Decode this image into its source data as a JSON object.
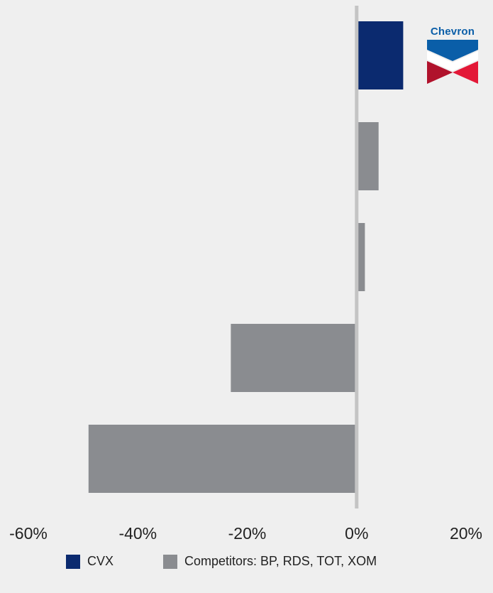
{
  "chart_data": {
    "type": "bar",
    "orientation": "horizontal",
    "bars": [
      {
        "value": 8.5,
        "series": "CVX"
      },
      {
        "value": 4.0,
        "series": "Competitors: BP, RDS, TOT, XOM"
      },
      {
        "value": 1.5,
        "series": "Competitors: BP, RDS, TOT, XOM"
      },
      {
        "value": -23.0,
        "series": "Competitors: BP, RDS, TOT, XOM"
      },
      {
        "value": -49.0,
        "series": "Competitors: BP, RDS, TOT, XOM"
      }
    ],
    "xlim": [
      -60,
      20
    ],
    "xticks": [
      -60,
      -40,
      -20,
      0,
      20
    ],
    "tick_labels": [
      "-60%",
      "-40%",
      "-20%",
      "0%",
      "20%"
    ],
    "title": "",
    "xlabel": "",
    "ylabel": "",
    "grid": false,
    "legend_position": "bottom-center",
    "legend": [
      {
        "label": "CVX",
        "color": "#0b2a6f"
      },
      {
        "label": "Competitors: BP, RDS, TOT, XOM",
        "color": "#8a8c90"
      }
    ],
    "axis_color": "#c4c4c4"
  },
  "logo": {
    "text": "Chevron",
    "icon": "chevron-logo-icon",
    "colors": {
      "blue": "#0a5ea8",
      "red": "#e31837",
      "white": "#ffffff"
    }
  }
}
